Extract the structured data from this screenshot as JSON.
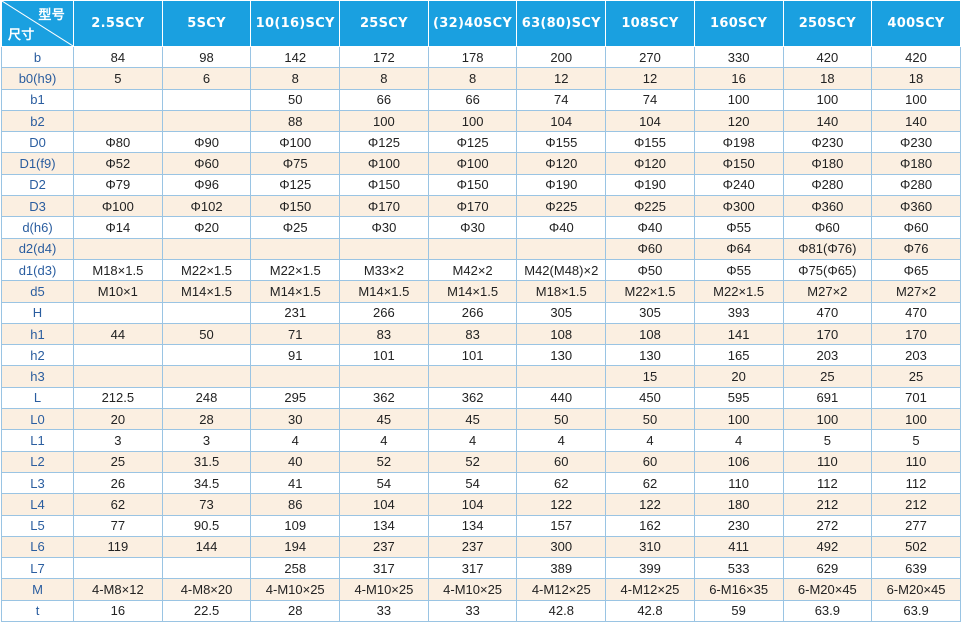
{
  "header": {
    "corner_top": "型号",
    "corner_bottom": "尺寸",
    "models": [
      "2.5SCY",
      "5SCY",
      "10(16)SCY",
      "25SCY",
      "(32)40SCY",
      "63(80)SCY",
      "108SCY",
      "160SCY",
      "250SCY",
      "400SCY"
    ]
  },
  "rows": [
    {
      "label": "b",
      "cells": [
        "84",
        "98",
        "142",
        "172",
        "178",
        "200",
        "270",
        "330",
        "420",
        "420"
      ]
    },
    {
      "label": "b0(h9)",
      "cells": [
        "5",
        "6",
        "8",
        "8",
        "8",
        "12",
        "12",
        "16",
        "18",
        "18"
      ]
    },
    {
      "label": "b1",
      "cells": [
        "",
        "",
        "50",
        "66",
        "66",
        "74",
        "74",
        "100",
        "100",
        "100"
      ]
    },
    {
      "label": "b2",
      "cells": [
        "",
        "",
        "88",
        "100",
        "100",
        "104",
        "104",
        "120",
        "140",
        "140"
      ]
    },
    {
      "label": "D0",
      "cells": [
        "Φ80",
        "Φ90",
        "Φ100",
        "Φ125",
        "Φ125",
        "Φ155",
        "Φ155",
        "Φ198",
        "Φ230",
        "Φ230"
      ]
    },
    {
      "label": "D1(f9)",
      "cells": [
        "Φ52",
        "Φ60",
        "Φ75",
        "Φ100",
        "Φ100",
        "Φ120",
        "Φ120",
        "Φ150",
        "Φ180",
        "Φ180"
      ]
    },
    {
      "label": "D2",
      "cells": [
        "Φ79",
        "Φ96",
        "Φ125",
        "Φ150",
        "Φ150",
        "Φ190",
        "Φ190",
        "Φ240",
        "Φ280",
        "Φ280"
      ]
    },
    {
      "label": "D3",
      "cells": [
        "Φ100",
        "Φ102",
        "Φ150",
        "Φ170",
        "Φ170",
        "Φ225",
        "Φ225",
        "Φ300",
        "Φ360",
        "Φ360"
      ]
    },
    {
      "label": "d(h6)",
      "cells": [
        "Φ14",
        "Φ20",
        "Φ25",
        "Φ30",
        "Φ30",
        "Φ40",
        "Φ40",
        "Φ55",
        "Φ60",
        "Φ60"
      ]
    },
    {
      "label": "d2(d4)",
      "cells": [
        "",
        "",
        "",
        "",
        "",
        "",
        "Φ60",
        "Φ64",
        "Φ81(Φ76)",
        "Φ76"
      ]
    },
    {
      "label": "d1(d3)",
      "cells": [
        "M18×1.5",
        "M22×1.5",
        "M22×1.5",
        "M33×2",
        "M42×2",
        "M42(M48)×2",
        "Φ50",
        "Φ55",
        "Φ75(Φ65)",
        "Φ65"
      ]
    },
    {
      "label": "d5",
      "cells": [
        "M10×1",
        "M14×1.5",
        "M14×1.5",
        "M14×1.5",
        "M14×1.5",
        "M18×1.5",
        "M22×1.5",
        "M22×1.5",
        "M27×2",
        "M27×2"
      ]
    },
    {
      "label": "H",
      "cells": [
        "",
        "",
        "231",
        "266",
        "266",
        "305",
        "305",
        "393",
        "470",
        "470"
      ]
    },
    {
      "label": "h1",
      "cells": [
        "44",
        "50",
        "71",
        "83",
        "83",
        "108",
        "108",
        "141",
        "170",
        "170"
      ]
    },
    {
      "label": "h2",
      "cells": [
        "",
        "",
        "91",
        "101",
        "101",
        "130",
        "130",
        "165",
        "203",
        "203"
      ]
    },
    {
      "label": "h3",
      "cells": [
        "",
        "",
        "",
        "",
        "",
        "",
        "15",
        "20",
        "25",
        "25"
      ]
    },
    {
      "label": "L",
      "cells": [
        "212.5",
        "248",
        "295",
        "362",
        "362",
        "440",
        "450",
        "595",
        "691",
        "701"
      ]
    },
    {
      "label": "L0",
      "cells": [
        "20",
        "28",
        "30",
        "45",
        "45",
        "50",
        "50",
        "100",
        "100",
        "100"
      ]
    },
    {
      "label": "L1",
      "cells": [
        "3",
        "3",
        "4",
        "4",
        "4",
        "4",
        "4",
        "4",
        "5",
        "5"
      ]
    },
    {
      "label": "L2",
      "cells": [
        "25",
        "31.5",
        "40",
        "52",
        "52",
        "60",
        "60",
        "106",
        "110",
        "110"
      ]
    },
    {
      "label": "L3",
      "cells": [
        "26",
        "34.5",
        "41",
        "54",
        "54",
        "62",
        "62",
        "110",
        "112",
        "112"
      ]
    },
    {
      "label": "L4",
      "cells": [
        "62",
        "73",
        "86",
        "104",
        "104",
        "122",
        "122",
        "180",
        "212",
        "212"
      ]
    },
    {
      "label": "L5",
      "cells": [
        "77",
        "90.5",
        "109",
        "134",
        "134",
        "157",
        "162",
        "230",
        "272",
        "277"
      ]
    },
    {
      "label": "L6",
      "cells": [
        "119",
        "144",
        "194",
        "237",
        "237",
        "300",
        "310",
        "411",
        "492",
        "502"
      ]
    },
    {
      "label": "L7",
      "cells": [
        "",
        "",
        "258",
        "317",
        "317",
        "389",
        "399",
        "533",
        "629",
        "639"
      ]
    },
    {
      "label": "M",
      "cells": [
        "4-M8×12",
        "4-M8×20",
        "4-M10×25",
        "4-M10×25",
        "4-M10×25",
        "4-M12×25",
        "4-M12×25",
        "6-M16×35",
        "6-M20×45",
        "6-M20×45"
      ]
    },
    {
      "label": "t",
      "cells": [
        "16",
        "22.5",
        "28",
        "33",
        "33",
        "42.8",
        "42.8",
        "59",
        "63.9",
        "63.9"
      ]
    }
  ],
  "colors": {
    "header_bg": "#1aa0e0",
    "header_text": "#ffffff",
    "row_alt_bg": "#fbefe1",
    "row_bg": "#ffffff",
    "grid": "#9ac4e3",
    "label_text": "#2a5d9f"
  }
}
